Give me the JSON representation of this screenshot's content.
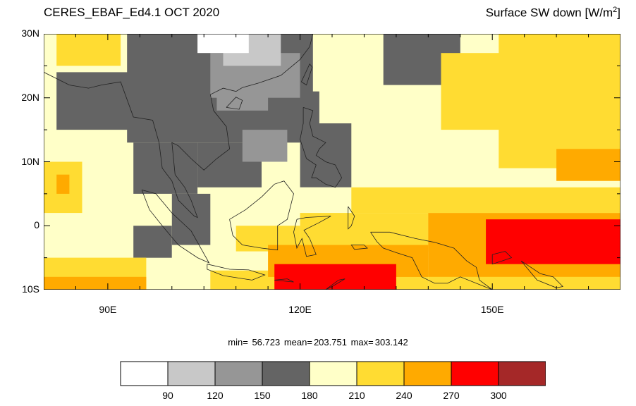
{
  "header": {
    "title_left": "CERES_EBAF_Ed4.1 OCT 2020",
    "title_right_main": "Surface SW down [W/m",
    "title_right_sup": "2",
    "title_right_end": "]"
  },
  "axes": {
    "lat_labels": [
      "30N",
      "20N",
      "10N",
      "0",
      "10S"
    ],
    "lat_values": [
      30,
      20,
      10,
      0,
      -10
    ],
    "lon_labels": [
      "90E",
      "120E",
      "150E"
    ],
    "lon_values": [
      90,
      120,
      150
    ],
    "lon_range": [
      80,
      170
    ],
    "lat_range": [
      -10,
      30
    ]
  },
  "stats": {
    "min_label": "min=",
    "min_value": "56.723",
    "mean_label": "mean=",
    "mean_value": "203.751",
    "max_label": "max=",
    "max_value": "303.142"
  },
  "colorbar": {
    "labels": [
      "90",
      "120",
      "150",
      "180",
      "210",
      "240",
      "270",
      "300"
    ],
    "colors": [
      "#ffffff",
      "#c8c8c8",
      "#969696",
      "#646464",
      "#ffffc8",
      "#ffdc32",
      "#ffaa00",
      "#ff0000",
      "#a52828"
    ]
  },
  "chart_data": {
    "type": "heatmap",
    "variable": "Surface SW down",
    "units": "W/m2",
    "bounds": [
      90,
      120,
      150,
      180,
      210,
      240,
      270,
      300
    ],
    "regions": [
      {
        "lon": [
          80,
          170
        ],
        "lat": [
          -10,
          30
        ],
        "level": 4
      },
      {
        "lon": [
          82,
          92
        ],
        "lat": [
          25,
          30
        ],
        "level": 5
      },
      {
        "lon": [
          80,
          86
        ],
        "lat": [
          2,
          10
        ],
        "level": 5
      },
      {
        "lon": [
          82,
          84
        ],
        "lat": [
          5,
          8
        ],
        "level": 6
      },
      {
        "lon": [
          93,
          122
        ],
        "lat": [
          13,
          30
        ],
        "level": 3
      },
      {
        "lon": [
          82,
          98
        ],
        "lat": [
          15,
          24
        ],
        "level": 3
      },
      {
        "lon": [
          94,
          104
        ],
        "lat": [
          5,
          13
        ],
        "level": 3
      },
      {
        "lon": [
          104,
          114
        ],
        "lat": [
          6,
          13
        ],
        "level": 3
      },
      {
        "lon": [
          100,
          106
        ],
        "lat": [
          -3,
          5
        ],
        "level": 3
      },
      {
        "lon": [
          94,
          100
        ],
        "lat": [
          -5,
          0
        ],
        "level": 3
      },
      {
        "lon": [
          119,
          123
        ],
        "lat": [
          14,
          21
        ],
        "level": 3
      },
      {
        "lon": [
          120,
          128
        ],
        "lat": [
          6,
          16
        ],
        "level": 3
      },
      {
        "lon": [
          133,
          145
        ],
        "lat": [
          22,
          30
        ],
        "level": 3
      },
      {
        "lon": [
          114,
          120
        ],
        "lat": [
          22,
          30
        ],
        "level": 3
      },
      {
        "lon": [
          106,
          120
        ],
        "lat": [
          20,
          27
        ],
        "level": 2
      },
      {
        "lon": [
          107,
          115
        ],
        "lat": [
          18,
          23
        ],
        "level": 2
      },
      {
        "lon": [
          111,
          118
        ],
        "lat": [
          10,
          15
        ],
        "level": 2
      },
      {
        "lon": [
          108,
          117
        ],
        "lat": [
          25,
          30
        ],
        "level": 1
      },
      {
        "lon": [
          104,
          112
        ],
        "lat": [
          27,
          30
        ],
        "level": 0
      },
      {
        "lon": [
          142,
          170
        ],
        "lat": [
          15,
          27
        ],
        "level": 5
      },
      {
        "lon": [
          151,
          170
        ],
        "lat": [
          9,
          30
        ],
        "level": 5
      },
      {
        "lon": [
          128,
          170
        ],
        "lat": [
          2,
          6
        ],
        "level": 5
      },
      {
        "lon": [
          120,
          140
        ],
        "lat": [
          -4,
          2
        ],
        "level": 5
      },
      {
        "lon": [
          80,
          96
        ],
        "lat": [
          -10,
          -5
        ],
        "level": 5
      },
      {
        "lon": [
          106,
          140
        ],
        "lat": [
          -10,
          -7
        ],
        "level": 5
      },
      {
        "lon": [
          140,
          170
        ],
        "lat": [
          -10,
          -4
        ],
        "level": 5
      },
      {
        "lon": [
          110,
          120
        ],
        "lat": [
          -4,
          0
        ],
        "level": 5
      },
      {
        "lon": [
          160,
          170
        ],
        "lat": [
          7,
          12
        ],
        "level": 6
      },
      {
        "lon": [
          140,
          170
        ],
        "lat": [
          -8,
          2
        ],
        "level": 6
      },
      {
        "lon": [
          115,
          140
        ],
        "lat": [
          -8,
          -3
        ],
        "level": 6
      },
      {
        "lon": [
          80,
          96
        ],
        "lat": [
          -10,
          -8
        ],
        "level": 6
      },
      {
        "lon": [
          149,
          170
        ],
        "lat": [
          -6,
          1
        ],
        "level": 7
      },
      {
        "lon": [
          116,
          135
        ],
        "lat": [
          -10,
          -6
        ],
        "level": 7
      }
    ]
  }
}
